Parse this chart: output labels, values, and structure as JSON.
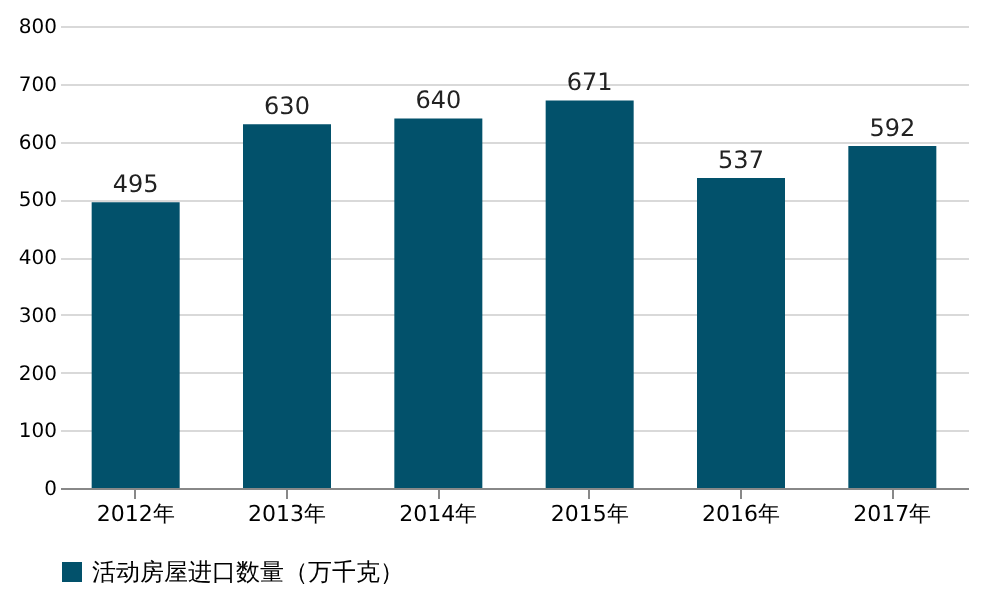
{
  "chart_data": {
    "type": "bar",
    "categories": [
      "2012年",
      "2013年",
      "2014年",
      "2015年",
      "2016年",
      "2017年"
    ],
    "series": [
      {
        "name": "活动房屋进口数量（万千克）",
        "color": "#02516b",
        "values": [
          495,
          630,
          640,
          671,
          537,
          592
        ]
      }
    ],
    "ylim": [
      0,
      800
    ],
    "yticks": [
      0,
      100,
      200,
      300,
      400,
      500,
      600,
      700,
      800
    ],
    "grid": "y",
    "legend": "bottom",
    "data_labels": true
  }
}
